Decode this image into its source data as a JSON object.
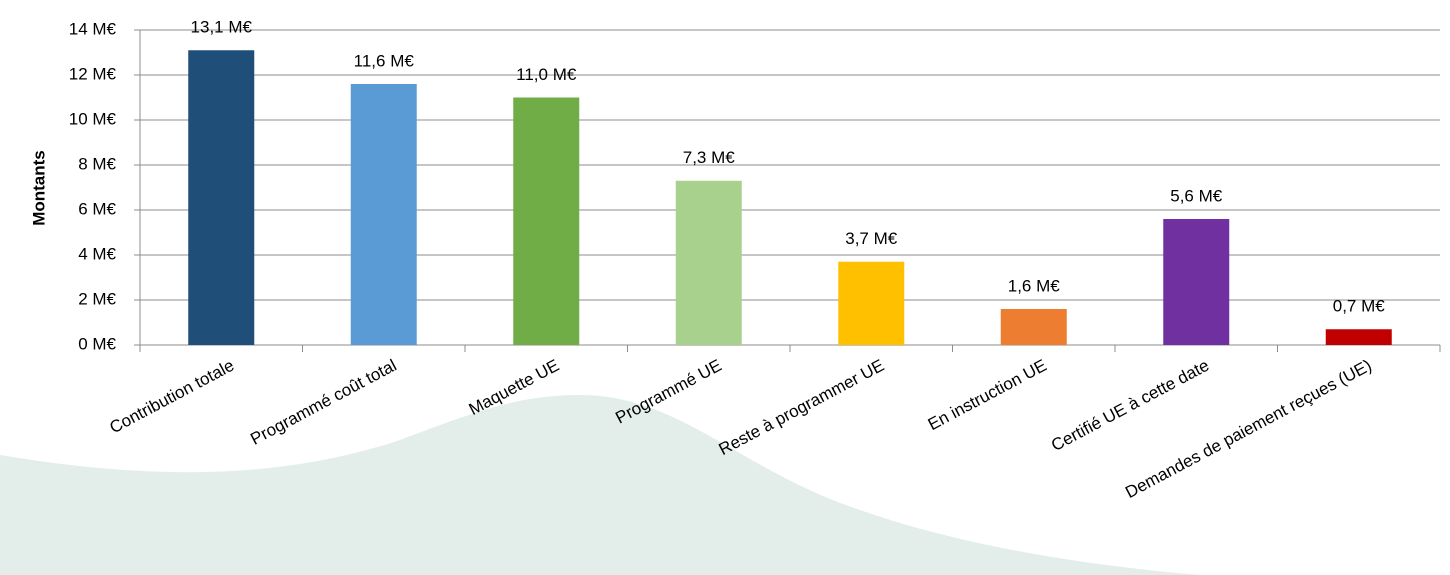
{
  "chart_data": {
    "type": "bar",
    "y_axis_label": "Montants",
    "categories": [
      "Contribution totale",
      "Programmé coût total",
      "Maquette UE",
      "Programmé UE",
      "Reste à programmer UE",
      "En instruction UE",
      "Certifié UE à cette date",
      "Demandes de paiement reçues (UE)"
    ],
    "values": [
      13.1,
      11.6,
      11.0,
      7.3,
      3.7,
      1.6,
      5.6,
      0.7
    ],
    "value_labels": [
      "13,1 M€",
      "11,6 M€",
      "11,0 M€",
      "7,3 M€",
      "3,7 M€",
      "1,6 M€",
      "5,6 M€",
      "0,7 M€"
    ],
    "colors": [
      "#1f4e79",
      "#5b9bd5",
      "#70ad47",
      "#a9d18e",
      "#ffc000",
      "#ed7d31",
      "#7030a0",
      "#c00000"
    ],
    "ylim": [
      0,
      14
    ],
    "yticks": [
      {
        "value": 0,
        "label": "0 M€"
      },
      {
        "value": 2,
        "label": "2 M€"
      },
      {
        "value": 4,
        "label": "4 M€"
      },
      {
        "value": 6,
        "label": "6 M€"
      },
      {
        "value": 8,
        "label": "8 M€"
      },
      {
        "value": 10,
        "label": "10 M€"
      },
      {
        "value": 12,
        "label": "12 M€"
      },
      {
        "value": 14,
        "label": "14 M€"
      }
    ],
    "grid": true
  }
}
